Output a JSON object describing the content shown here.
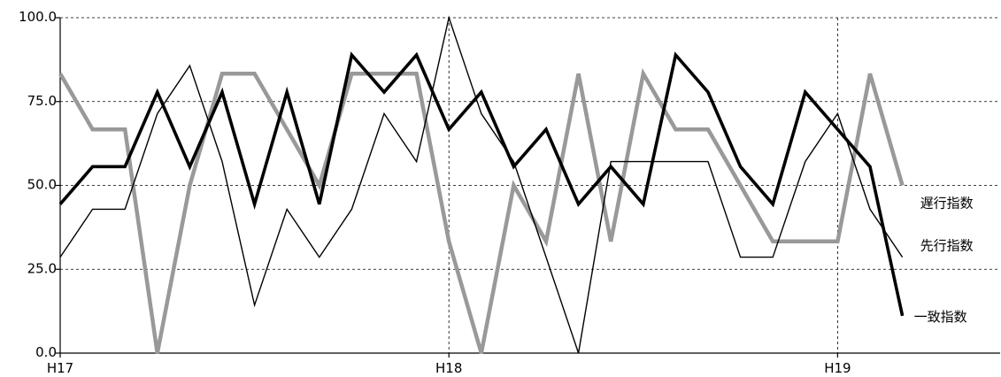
{
  "chart_data": {
    "type": "line",
    "title": "",
    "xlabel": "",
    "ylabel": "",
    "ylim": [
      0,
      100
    ],
    "yticks": [
      "0.0",
      "25.0",
      "50.0",
      "75.0",
      "100.0"
    ],
    "x_tick_labels": [
      "H17",
      "H18",
      "H19"
    ],
    "grid": true,
    "n_points": 27,
    "series": [
      {
        "name": "遅行指数",
        "color": "#999999",
        "values": [
          83.3,
          66.7,
          66.7,
          0,
          50,
          83.3,
          83.3,
          66.7,
          50,
          83.3,
          83.3,
          83.3,
          33.3,
          0,
          50,
          33.3,
          83.3,
          33.3,
          83.3,
          66.7,
          66.7,
          50,
          33.3,
          33.3,
          33.3,
          83.3,
          50
        ]
      },
      {
        "name": "先行指数",
        "color": "#000000",
        "values": [
          28.6,
          42.9,
          42.9,
          71.4,
          85.7,
          57.1,
          14.3,
          42.9,
          28.6,
          42.9,
          71.4,
          57.1,
          100,
          71.4,
          57.1,
          28.6,
          0,
          57.1,
          57.1,
          57.1,
          57.1,
          28.6,
          28.6,
          57.1,
          71.4,
          42.9,
          28.6
        ]
      },
      {
        "name": "一致指数",
        "color": "#000000",
        "values": [
          44.4,
          55.6,
          55.6,
          77.8,
          55.6,
          77.8,
          44.4,
          77.8,
          44.4,
          88.9,
          77.8,
          88.9,
          66.7,
          77.8,
          55.6,
          66.7,
          44.4,
          55.6,
          44.4,
          88.9,
          77.8,
          55.6,
          44.4,
          77.8,
          66.7,
          55.6,
          11.1
        ]
      }
    ]
  }
}
